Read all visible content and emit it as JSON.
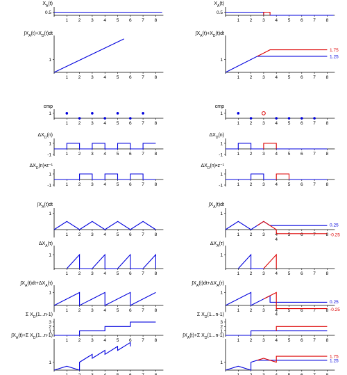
{
  "colors": {
    "blue": "#0000dd",
    "red": "#dd0000",
    "axis": "#000000"
  },
  "x_ticks": [
    "1",
    "2",
    "3",
    "4",
    "5",
    "6",
    "7",
    "8"
  ],
  "panels": [
    {
      "id": "xa",
      "label": "X_A(t)",
      "yticks": [
        {
          "v": 0.5,
          "t": "0.5"
        }
      ],
      "ylim": [
        0,
        1
      ],
      "left": [
        {
          "c": "blue",
          "pts": [
            [
              0,
              0.5
            ],
            [
              8.5,
              0.5
            ]
          ]
        }
      ],
      "right": [
        {
          "c": "blue",
          "pts": [
            [
              0,
              0.5
            ],
            [
              3,
              0.5
            ],
            [
              3,
              0
            ]
          ]
        },
        {
          "c": "red",
          "pts": [
            [
              3,
              0
            ],
            [
              3,
              0.5
            ],
            [
              3.5,
              0.5
            ],
            [
              3.5,
              0
            ]
          ]
        },
        {
          "c": "blue",
          "pts": [
            [
              3.5,
              0
            ],
            [
              8.5,
              0
            ]
          ]
        }
      ]
    },
    {
      "id": "int",
      "label": "∫X_A(t)+X_D(t)dt",
      "yticks": [
        {
          "v": 1,
          "t": "1"
        }
      ],
      "ylim": [
        0,
        2.7
      ],
      "left": [
        {
          "c": "blue",
          "pts": [
            [
              0,
              0
            ],
            [
              5.5,
              2.6
            ]
          ]
        }
      ],
      "right": [
        {
          "c": "blue",
          "pts": [
            [
              0,
              0
            ],
            [
              2.5,
              1.25
            ],
            [
              8,
              1.25
            ]
          ]
        },
        {
          "c": "red",
          "pts": [
            [
              2.5,
              1.25
            ],
            [
              3.5,
              1.75
            ],
            [
              8,
              1.75
            ]
          ]
        }
      ],
      "right_labels": [
        {
          "t": "1.75",
          "c": "red",
          "v": 1.75
        },
        {
          "t": "1.25",
          "c": "blue",
          "v": 1.25
        }
      ]
    },
    {
      "id": "cmp",
      "label": "cmp",
      "yticks": [
        {
          "v": 1,
          "t": "1"
        }
      ],
      "ylim": [
        0,
        1.4
      ],
      "left_dots": [
        [
          1,
          1
        ],
        [
          2,
          0
        ],
        [
          3,
          1
        ],
        [
          4,
          0
        ],
        [
          5,
          1
        ],
        [
          6,
          0
        ],
        [
          7,
          1
        ]
      ],
      "right_dots": [
        [
          1,
          1
        ],
        [
          2,
          0
        ],
        [
          4,
          0
        ],
        [
          5,
          0
        ],
        [
          6,
          0
        ],
        [
          7,
          0
        ]
      ],
      "right_open": [
        [
          3,
          1
        ]
      ]
    },
    {
      "id": "dxd",
      "label": "ΔX_D(n)",
      "yticks": [
        {
          "v": 1,
          "t": "1"
        },
        {
          "v": -1,
          "t": "-1"
        }
      ],
      "ylim": [
        -1,
        1.5
      ],
      "left": [
        {
          "c": "blue",
          "pts": [
            [
              0,
              0
            ],
            [
              1,
              0
            ],
            [
              1,
              1
            ],
            [
              2,
              1
            ],
            [
              2,
              0
            ],
            [
              3,
              0
            ],
            [
              3,
              1
            ],
            [
              4,
              1
            ],
            [
              4,
              0
            ],
            [
              5,
              0
            ],
            [
              5,
              1
            ],
            [
              6,
              1
            ],
            [
              6,
              0
            ],
            [
              7,
              0
            ],
            [
              7,
              1
            ],
            [
              8,
              1
            ]
          ]
        }
      ],
      "right": [
        {
          "c": "blue",
          "pts": [
            [
              0,
              0
            ],
            [
              1,
              0
            ],
            [
              1,
              1
            ],
            [
              2,
              1
            ],
            [
              2,
              0
            ],
            [
              3,
              0
            ]
          ]
        },
        {
          "c": "red",
          "pts": [
            [
              3,
              0
            ],
            [
              3,
              1
            ],
            [
              4,
              1
            ],
            [
              4,
              0
            ]
          ]
        },
        {
          "c": "blue",
          "pts": [
            [
              4,
              0
            ],
            [
              8,
              0
            ]
          ]
        }
      ]
    },
    {
      "id": "dxdz",
      "label": "ΔX_D(n)•z⁻¹",
      "yticks": [
        {
          "v": 1,
          "t": "1"
        },
        {
          "v": -1,
          "t": "-1"
        }
      ],
      "ylim": [
        -1,
        1.5
      ],
      "left": [
        {
          "c": "blue",
          "pts": [
            [
              0,
              0
            ],
            [
              2,
              0
            ],
            [
              2,
              1
            ],
            [
              3,
              1
            ],
            [
              3,
              0
            ],
            [
              4,
              0
            ],
            [
              4,
              1
            ],
            [
              5,
              1
            ],
            [
              5,
              0
            ],
            [
              6,
              0
            ],
            [
              6,
              1
            ],
            [
              7,
              1
            ],
            [
              7,
              0
            ],
            [
              8,
              0
            ]
          ]
        }
      ],
      "right": [
        {
          "c": "blue",
          "pts": [
            [
              0,
              0
            ],
            [
              2,
              0
            ],
            [
              2,
              1
            ],
            [
              3,
              1
            ],
            [
              3,
              0
            ],
            [
              4,
              0
            ]
          ]
        },
        {
          "c": "red",
          "pts": [
            [
              4,
              0
            ],
            [
              4,
              1
            ],
            [
              5,
              1
            ],
            [
              5,
              0
            ]
          ]
        },
        {
          "c": "blue",
          "pts": [
            [
              5,
              0
            ],
            [
              8,
              0
            ]
          ]
        }
      ]
    },
    {
      "id": "intxa",
      "label": "∫X_A(t)dt",
      "yticks": [
        {
          "v": 1,
          "t": "1"
        }
      ],
      "ylim": [
        -0.4,
        1.2
      ],
      "left": [
        {
          "c": "blue",
          "pts": [
            [
              0,
              0
            ],
            [
              1,
              0.5
            ],
            [
              2,
              0
            ],
            [
              3,
              0.5
            ],
            [
              4,
              0
            ],
            [
              5,
              0.5
            ],
            [
              6,
              0
            ],
            [
              7,
              0.5
            ],
            [
              8,
              0
            ]
          ]
        }
      ],
      "right": [
        {
          "c": "blue",
          "pts": [
            [
              0,
              0
            ],
            [
              1,
              0.5
            ],
            [
              2,
              0
            ],
            [
              3,
              0.5
            ],
            [
              3.5,
              0.25
            ],
            [
              8,
              0.25
            ]
          ]
        },
        {
          "c": "red",
          "pts": [
            [
              2.5,
              0.25
            ],
            [
              3,
              0.5
            ],
            [
              4,
              0
            ],
            [
              4,
              -0.25
            ],
            [
              8,
              -0.25
            ]
          ]
        }
      ],
      "right_labels": [
        {
          "t": "0.25",
          "c": "blue",
          "v": 0.3
        },
        {
          "t": "-0.25",
          "c": "red",
          "v": -0.3
        }
      ],
      "right_extra": [
        {
          "t": "4",
          "x": 4,
          "v": -0.35
        }
      ]
    },
    {
      "id": "dxa",
      "label": "ΔX_A(τ)",
      "yticks": [
        {
          "v": 1,
          "t": "1"
        }
      ],
      "ylim": [
        0,
        1.5
      ],
      "left": [
        {
          "c": "blue",
          "pts": [
            [
              1,
              0
            ],
            [
              2,
              1
            ],
            [
              2,
              0
            ],
            [
              3,
              0
            ],
            [
              4,
              1
            ],
            [
              4,
              0
            ],
            [
              5,
              0
            ],
            [
              6,
              1
            ],
            [
              6,
              0
            ],
            [
              7,
              0
            ],
            [
              8,
              1
            ],
            [
              8,
              0
            ]
          ]
        }
      ],
      "right": [
        {
          "c": "blue",
          "pts": [
            [
              1,
              0
            ],
            [
              2,
              1
            ],
            [
              2,
              0
            ],
            [
              3,
              0
            ]
          ]
        },
        {
          "c": "red",
          "pts": [
            [
              3,
              0
            ],
            [
              4,
              1
            ],
            [
              4,
              0
            ]
          ]
        }
      ]
    },
    {
      "id": "sum1",
      "label": "∫X_A(t)dt+ΔX_A(τ)",
      "yticks": [
        {
          "v": 1,
          "t": "1"
        }
      ],
      "ylim": [
        -0.4,
        1.4
      ],
      "left": [
        {
          "c": "blue",
          "pts": [
            [
              0,
              0
            ],
            [
              2,
              1
            ],
            [
              2,
              0
            ],
            [
              4,
              1
            ],
            [
              4,
              0
            ],
            [
              6,
              1
            ],
            [
              6,
              0
            ],
            [
              8,
              1
            ]
          ]
        }
      ],
      "right": [
        {
          "c": "blue",
          "pts": [
            [
              0,
              0
            ],
            [
              2,
              1
            ],
            [
              2,
              0
            ],
            [
              3.5,
              0.75
            ],
            [
              3.5,
              0.25
            ],
            [
              8,
              0.25
            ]
          ]
        },
        {
          "c": "red",
          "pts": [
            [
              3,
              0.5
            ],
            [
              4,
              1
            ],
            [
              4,
              -0.25
            ],
            [
              8,
              -0.25
            ]
          ]
        }
      ],
      "right_labels": [
        {
          "t": "0.25",
          "c": "blue",
          "v": 0.3
        },
        {
          "t": "-0.25",
          "c": "red",
          "v": -0.3
        }
      ],
      "right_extra": [
        {
          "t": "4",
          "x": 4,
          "v": -0.35
        }
      ]
    },
    {
      "id": "sumxd",
      "label": "Σ X_D(1...n-1)",
      "yticks": [
        {
          "v": 1,
          "t": "1"
        },
        {
          "v": 2,
          "t": "2"
        },
        {
          "v": 3,
          "t": "3"
        }
      ],
      "ylim": [
        0,
        3.3
      ],
      "left": [
        {
          "c": "blue",
          "pts": [
            [
              0,
              0
            ],
            [
              2,
              0
            ],
            [
              2,
              1
            ],
            [
              4,
              1
            ],
            [
              4,
              2
            ],
            [
              6,
              2
            ],
            [
              6,
              3
            ],
            [
              8,
              3
            ]
          ]
        }
      ],
      "right": [
        {
          "c": "blue",
          "pts": [
            [
              0,
              0
            ],
            [
              2,
              0
            ],
            [
              2,
              1
            ],
            [
              8,
              1
            ]
          ]
        },
        {
          "c": "red",
          "pts": [
            [
              4,
              1
            ],
            [
              4,
              2
            ],
            [
              8,
              2
            ]
          ]
        }
      ]
    },
    {
      "id": "final",
      "label": "∫X_A(t)+Σ X_D(1...n-1)",
      "yticks": [
        {
          "v": 1,
          "t": "1"
        }
      ],
      "ylim": [
        0,
        3.7
      ],
      "left": [
        {
          "c": "blue",
          "pts": [
            [
              0,
              0
            ],
            [
              1,
              0.5
            ],
            [
              2,
              0
            ],
            [
              2,
              1
            ],
            [
              3,
              2
            ],
            [
              3,
              1.5
            ],
            [
              4,
              2.5
            ],
            [
              4,
              2
            ],
            [
              5,
              3
            ],
            [
              5,
              2.5
            ],
            [
              6,
              3.5
            ],
            [
              6,
              3
            ]
          ]
        }
      ],
      "right": [
        {
          "c": "blue",
          "pts": [
            [
              0,
              0
            ],
            [
              1,
              0.5
            ],
            [
              2,
              0
            ],
            [
              2,
              1
            ],
            [
              2.5,
              1.25
            ],
            [
              8,
              1.25
            ]
          ]
        },
        {
          "c": "red",
          "pts": [
            [
              2.5,
              1.25
            ],
            [
              3,
              1.5
            ],
            [
              4,
              1
            ],
            [
              4,
              1.75
            ],
            [
              8,
              1.75
            ]
          ]
        }
      ],
      "right_labels": [
        {
          "t": "1.75",
          "c": "red",
          "v": 1.75
        },
        {
          "t": "1.25",
          "c": "blue",
          "v": 1.25
        }
      ]
    }
  ]
}
